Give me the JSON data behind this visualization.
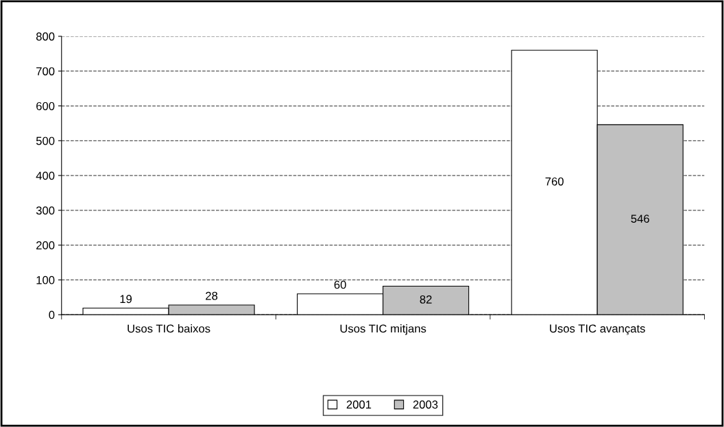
{
  "chart_data": {
    "type": "bar",
    "categories": [
      "Usos TIC baixos",
      "Usos TIC mitjans",
      "Usos TIC avançats"
    ],
    "series": [
      {
        "name": "2001",
        "color": "#ffffff",
        "values": [
          19,
          60,
          760
        ]
      },
      {
        "name": "2003",
        "color": "#c0c0c0",
        "values": [
          28,
          82,
          546
        ]
      }
    ],
    "ylim": [
      0,
      800
    ],
    "yticks": [
      0,
      100,
      200,
      300,
      400,
      500,
      600,
      700,
      800
    ],
    "grid": "y",
    "line_style": "dashed",
    "legend": "bottom",
    "data_labels": true
  }
}
